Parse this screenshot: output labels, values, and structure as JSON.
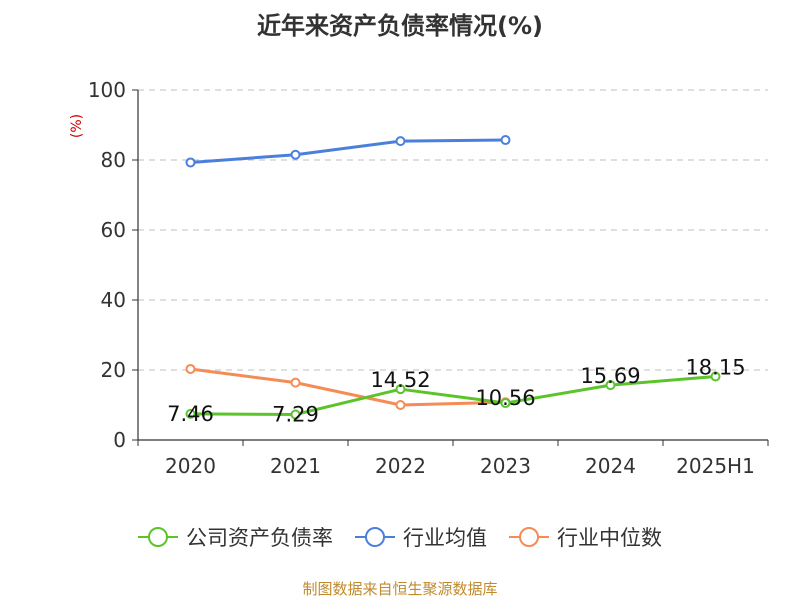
{
  "title": "近年来资产负债率情况(%)",
  "source": "制图数据来自恒生聚源数据库",
  "chart_data": {
    "type": "line",
    "title": "近年来资产负债率情况(%)",
    "ylabel": "(%)",
    "ylim": [
      0,
      100
    ],
    "yticks": [
      "0",
      "20",
      "40",
      "60",
      "80",
      "100"
    ],
    "categories": [
      "2020",
      "2021",
      "2022",
      "2023",
      "2024",
      "2025H1"
    ],
    "grid": true,
    "legend_position": "bottom",
    "series": [
      {
        "name": "公司资产负债率",
        "color": "#5bc42b",
        "values": [
          7.46,
          7.29,
          14.52,
          10.56,
          15.69,
          18.15
        ],
        "labels": [
          "7.46",
          "7.29",
          "14.52",
          "10.56",
          "15.69",
          "18.15"
        ]
      },
      {
        "name": "行业均值",
        "color": "#4a7fdb",
        "values": [
          79.3,
          81.5,
          85.4,
          85.7,
          null,
          null
        ]
      },
      {
        "name": "行业中位数",
        "color": "#f58b55",
        "values": [
          20.3,
          16.4,
          10.0,
          10.8,
          null,
          null
        ]
      }
    ]
  }
}
